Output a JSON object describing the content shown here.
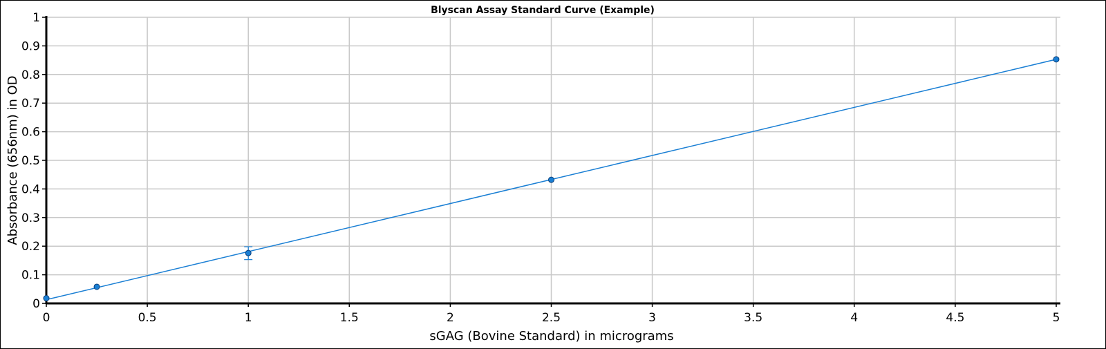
{
  "chart_data": {
    "type": "scatter",
    "title": "Blyscan Assay Standard Curve (Example)",
    "xlabel": "sGAG (Bovine Standard) in micrograms",
    "ylabel": "Absorbance (656nm) in OD",
    "xlim": [
      0,
      5
    ],
    "ylim": [
      0,
      1
    ],
    "x_ticks": [
      "0",
      "0.5",
      "1",
      "1.5",
      "2",
      "2.5",
      "3",
      "3.5",
      "4",
      "4.5",
      "5"
    ],
    "y_ticks": [
      "0",
      "0.1",
      "0.2",
      "0.3",
      "0.4",
      "0.5",
      "0.6",
      "0.7",
      "0.8",
      "0.9",
      "1"
    ],
    "grid": true,
    "series": [
      {
        "points": [
          {
            "x": 0,
            "y": 0.018
          },
          {
            "x": 0.25,
            "y": 0.058
          },
          {
            "x": 1,
            "y": 0.176,
            "err_low": 0.153,
            "err_high": 0.198
          },
          {
            "x": 2.5,
            "y": 0.432
          },
          {
            "x": 5,
            "y": 0.853
          }
        ],
        "fit_line": {
          "x0": 0,
          "y0": 0.013,
          "x1": 5,
          "y1": 0.853
        },
        "color": "#1a7fd4"
      }
    ]
  }
}
